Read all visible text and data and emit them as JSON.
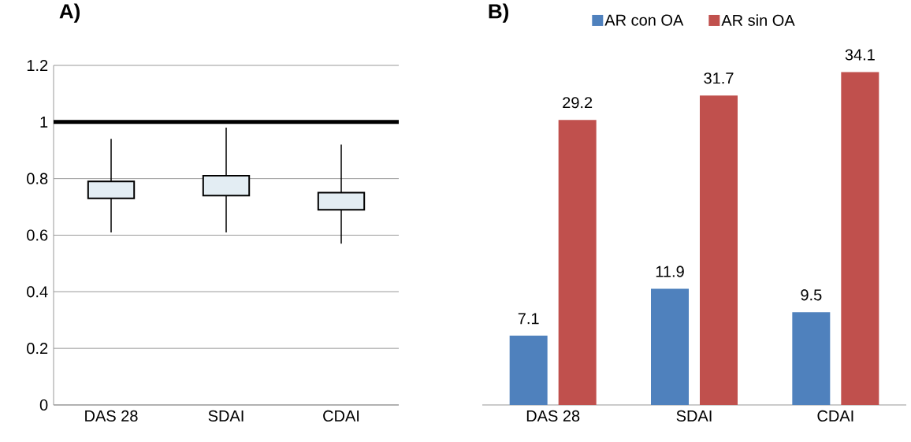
{
  "chart_data": [
    {
      "type": "box",
      "title": "A)",
      "categories": [
        "DAS 28",
        "SDAI",
        "CDAI"
      ],
      "color": "#e3edf3",
      "boxes": [
        {
          "low": 0.61,
          "q1": 0.73,
          "q3": 0.79,
          "high": 0.94
        },
        {
          "low": 0.61,
          "q1": 0.74,
          "q3": 0.81,
          "high": 0.98
        },
        {
          "low": 0.57,
          "q1": 0.69,
          "q3": 0.75,
          "high": 0.92
        }
      ],
      "ylim": [
        0,
        1.2
      ],
      "yticks": [
        0,
        0.2,
        0.4,
        0.6,
        0.8,
        1,
        1.2
      ],
      "grid": "y",
      "ref_lines": [
        {
          "axis": "y",
          "value": 1,
          "color": "#000000"
        }
      ]
    },
    {
      "type": "bar",
      "title": "B)",
      "categories": [
        "DAS 28",
        "SDAI",
        "CDAI"
      ],
      "series": [
        {
          "name": "AR con OA",
          "color": "#4f81bd",
          "values": [
            7.1,
            11.9,
            9.5
          ]
        },
        {
          "name": "AR sin OA",
          "color": "#c0504d",
          "values": [
            29.2,
            31.7,
            34.1
          ]
        }
      ],
      "data_labels": true,
      "legend": "top",
      "tick_labels": "x"
    }
  ]
}
